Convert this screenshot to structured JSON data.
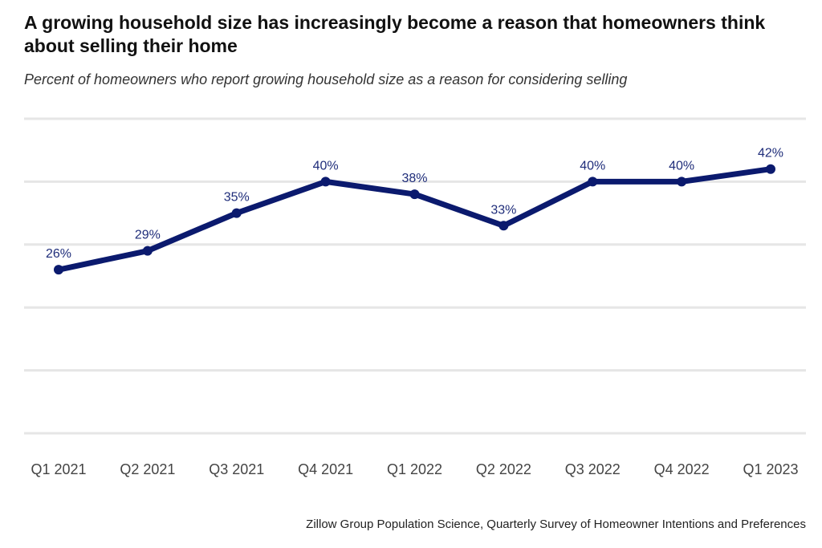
{
  "chart_data": {
    "type": "line",
    "title": "A growing household size has increasingly become a reason that homeowners think about selling their home",
    "subtitle": "Percent of homeowners who report growing household size as a reason for considering selling",
    "source": "Zillow Group Population Science, Quarterly Survey of Homeowner Intentions and Preferences",
    "categories": [
      "Q1 2021",
      "Q2 2021",
      "Q3 2021",
      "Q4 2021",
      "Q1 2022",
      "Q2 2022",
      "Q3 2022",
      "Q4 2022",
      "Q1 2023"
    ],
    "values": [
      26,
      29,
      35,
      40,
      38,
      33,
      40,
      40,
      42
    ],
    "data_labels": [
      "26%",
      "29%",
      "35%",
      "40%",
      "38%",
      "33%",
      "40%",
      "40%",
      "42%"
    ],
    "ylim": [
      0,
      50
    ],
    "gridlines": [
      0,
      10,
      20,
      30,
      40,
      50
    ],
    "grid": true,
    "y_tick_labels_shown": false,
    "colors": {
      "line": "#0b1a6e",
      "data_label": "#1f2d7a",
      "grid": "#e6e6e6"
    }
  }
}
